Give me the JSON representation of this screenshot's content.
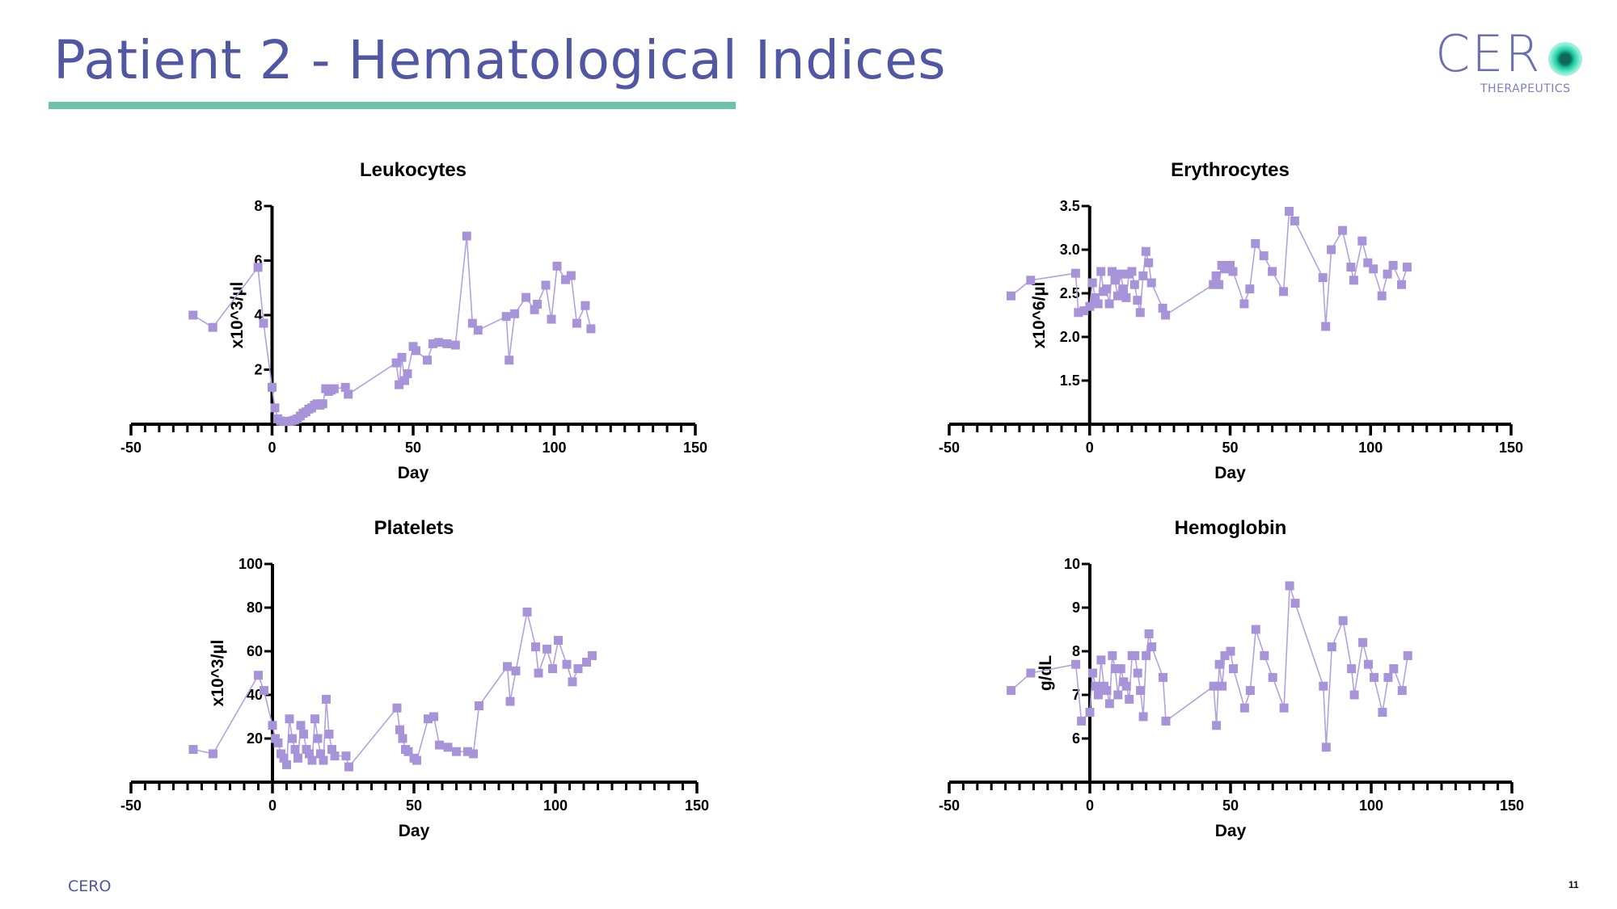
{
  "slide": {
    "title": "Patient 2 - Hematological Indices",
    "page_number": "11",
    "footer": "CERO"
  },
  "logo": {
    "name": "CER",
    "tagline": "THERAPEUTICS"
  },
  "colors": {
    "title": "#5257a3",
    "rule": "#6cc3aa",
    "marker": "#a794d8",
    "line": "#b0a3de"
  },
  "chart_data": [
    {
      "type": "line",
      "title": "Leukocytes",
      "xlabel": "Day",
      "ylabel": "x10^3/µl",
      "xlim": [
        -50,
        150
      ],
      "ylim": [
        0,
        8
      ],
      "xticks": [
        -50,
        0,
        50,
        100,
        150
      ],
      "yticks": [
        2,
        4,
        6,
        8
      ],
      "grid": false,
      "series": [
        {
          "name": "Leukocytes",
          "x": [
            -28,
            -21,
            -5,
            -3,
            0,
            1,
            2,
            3,
            4,
            5,
            6,
            7,
            8,
            9,
            10,
            11,
            12,
            13,
            14,
            15,
            16,
            17,
            18,
            19,
            20,
            21,
            22,
            26,
            27,
            44,
            45,
            46,
            47,
            48,
            50,
            51,
            55,
            57,
            59,
            62,
            65,
            69,
            71,
            73,
            83,
            84,
            86,
            90,
            93,
            94,
            97,
            99,
            101,
            104,
            106,
            108,
            111,
            113
          ],
          "y": [
            4.0,
            3.55,
            5.75,
            3.7,
            1.35,
            0.6,
            0.2,
            0.12,
            0.1,
            0.1,
            0.1,
            0.12,
            0.15,
            0.2,
            0.3,
            0.4,
            0.45,
            0.55,
            0.6,
            0.7,
            0.75,
            0.7,
            0.75,
            1.3,
            1.2,
            1.25,
            1.3,
            1.35,
            1.1,
            2.25,
            1.45,
            2.45,
            1.6,
            1.85,
            2.85,
            2.7,
            2.35,
            2.95,
            3.0,
            2.95,
            2.9,
            6.9,
            3.7,
            3.45,
            3.95,
            2.35,
            4.05,
            4.65,
            4.2,
            4.4,
            5.1,
            3.85,
            5.8,
            5.3,
            5.45,
            3.7,
            4.35,
            3.5
          ]
        }
      ]
    },
    {
      "type": "line",
      "title": "Erythrocytes",
      "xlabel": "Day",
      "ylabel": "x10^6/µl",
      "xlim": [
        -50,
        150
      ],
      "ylim": [
        1.0,
        3.5
      ],
      "xticks": [
        -50,
        0,
        50,
        100,
        150
      ],
      "yticks": [
        1.5,
        2.0,
        2.5,
        3.0,
        3.5
      ],
      "grid": false,
      "series": [
        {
          "name": "Erythrocytes",
          "x": [
            -28,
            -21,
            -5,
            -4,
            -2,
            0,
            1,
            2,
            3,
            4,
            5,
            6,
            7,
            8,
            9,
            10,
            11,
            12,
            13,
            14,
            15,
            16,
            17,
            18,
            19,
            20,
            21,
            22,
            26,
            27,
            44,
            45,
            46,
            47,
            48,
            50,
            51,
            55,
            57,
            59,
            62,
            65,
            69,
            71,
            73,
            83,
            84,
            86,
            90,
            93,
            94,
            97,
            99,
            101,
            104,
            106,
            108,
            111,
            113
          ],
          "y": [
            2.47,
            2.65,
            2.73,
            2.28,
            2.3,
            2.35,
            2.62,
            2.45,
            2.38,
            2.75,
            2.52,
            2.55,
            2.38,
            2.75,
            2.65,
            2.47,
            2.72,
            2.55,
            2.45,
            2.72,
            2.75,
            2.6,
            2.42,
            2.28,
            2.7,
            2.98,
            2.85,
            2.62,
            2.33,
            2.25,
            2.6,
            2.7,
            2.6,
            2.82,
            2.78,
            2.82,
            2.75,
            2.38,
            2.55,
            3.07,
            2.93,
            2.75,
            2.52,
            3.44,
            3.33,
            2.68,
            2.12,
            3.0,
            3.22,
            2.8,
            2.65,
            3.1,
            2.85,
            2.78,
            2.47,
            2.72,
            2.82,
            2.6,
            2.8
          ]
        }
      ]
    },
    {
      "type": "line",
      "title": "Platelets",
      "xlabel": "Day",
      "ylabel": "x10^3/µl",
      "xlim": [
        -50,
        150
      ],
      "ylim": [
        0,
        100
      ],
      "xticks": [
        -50,
        0,
        50,
        100,
        150
      ],
      "yticks": [
        20,
        40,
        60,
        80,
        100
      ],
      "grid": false,
      "series": [
        {
          "name": "Platelets",
          "x": [
            -28,
            -21,
            -5,
            -3,
            0,
            1,
            2,
            3,
            4,
            5,
            6,
            7,
            8,
            9,
            10,
            11,
            12,
            13,
            14,
            15,
            16,
            17,
            18,
            19,
            20,
            21,
            22,
            26,
            27,
            44,
            45,
            46,
            47,
            48,
            50,
            51,
            55,
            57,
            59,
            62,
            65,
            69,
            71,
            73,
            83,
            84,
            86,
            90,
            93,
            94,
            97,
            99,
            101,
            104,
            106,
            108,
            111,
            113
          ],
          "y": [
            15,
            13,
            49,
            42,
            26,
            20,
            18,
            13,
            11,
            8,
            29,
            20,
            15,
            11,
            26,
            22,
            15,
            13,
            10,
            29,
            20,
            13,
            10,
            38,
            22,
            15,
            12,
            12,
            7,
            34,
            24,
            20,
            15,
            14,
            11,
            10,
            29,
            30,
            17,
            16,
            14,
            14,
            13,
            35,
            53,
            37,
            51,
            78,
            62,
            50,
            61,
            52,
            65,
            54,
            46,
            52,
            55,
            58
          ]
        }
      ]
    },
    {
      "type": "line",
      "title": "Hemoglobin",
      "xlabel": "Day",
      "ylabel": "g/dL",
      "xlim": [
        -50,
        150
      ],
      "ylim": [
        5,
        10
      ],
      "xticks": [
        -50,
        0,
        50,
        100,
        150
      ],
      "yticks": [
        6,
        7,
        8,
        9,
        10
      ],
      "grid": false,
      "series": [
        {
          "name": "Hemoglobin",
          "x": [
            -28,
            -21,
            -5,
            -3,
            0,
            1,
            2,
            3,
            4,
            5,
            6,
            7,
            8,
            9,
            10,
            11,
            12,
            13,
            14,
            15,
            16,
            17,
            18,
            19,
            20,
            21,
            22,
            26,
            27,
            44,
            45,
            46,
            47,
            48,
            50,
            51,
            55,
            57,
            59,
            62,
            65,
            69,
            71,
            73,
            83,
            84,
            86,
            90,
            93,
            94,
            97,
            99,
            101,
            104,
            106,
            108,
            111,
            113
          ],
          "y": [
            7.1,
            7.5,
            7.7,
            6.4,
            6.6,
            7.5,
            7.2,
            7.0,
            7.8,
            7.2,
            7.1,
            6.8,
            7.9,
            7.6,
            7.0,
            7.6,
            7.3,
            7.2,
            6.9,
            7.9,
            7.9,
            7.5,
            7.1,
            6.5,
            7.9,
            8.4,
            8.1,
            7.4,
            6.4,
            7.2,
            6.3,
            7.7,
            7.2,
            7.9,
            8.0,
            7.6,
            6.7,
            7.1,
            8.5,
            7.9,
            7.4,
            6.7,
            9.5,
            9.1,
            7.2,
            5.8,
            8.1,
            8.7,
            7.6,
            7.0,
            8.2,
            7.7,
            7.4,
            6.6,
            7.4,
            7.6,
            7.1,
            7.9
          ]
        }
      ]
    }
  ]
}
